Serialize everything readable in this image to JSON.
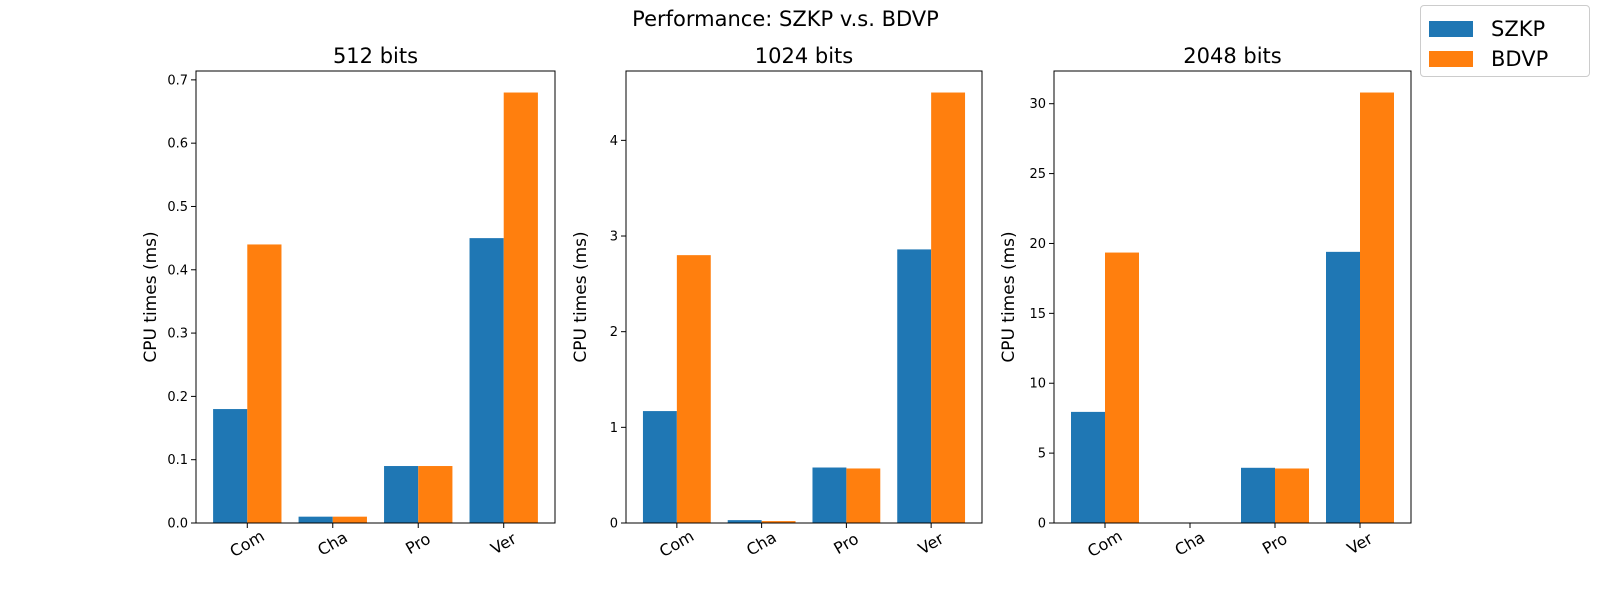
{
  "suptitle": "Performance: SZKP v.s. BDVP",
  "legend": [
    {
      "name": "SZKP",
      "color": "#1f77b4"
    },
    {
      "name": "BDVP",
      "color": "#ff7f0e"
    }
  ],
  "chart_data": [
    {
      "type": "bar",
      "title": "512 bits",
      "xlabel": "",
      "ylabel": "CPU times (ms)",
      "categories": [
        "Com",
        "Cha",
        "Pro",
        "Ver"
      ],
      "ylim": [
        0,
        0.714
      ],
      "yticks": [
        "0.0",
        "0.1",
        "0.2",
        "0.3",
        "0.4",
        "0.5",
        "0.6",
        "0.7"
      ],
      "series": [
        {
          "name": "SZKP",
          "color": "#1f77b4",
          "values": [
            0.18,
            0.01,
            0.09,
            0.45
          ]
        },
        {
          "name": "BDVP",
          "color": "#ff7f0e",
          "values": [
            0.44,
            0.01,
            0.09,
            0.68
          ]
        }
      ]
    },
    {
      "type": "bar",
      "title": "1024 bits",
      "xlabel": "",
      "ylabel": "CPU times (ms)",
      "categories": [
        "Com",
        "Cha",
        "Pro",
        "Ver"
      ],
      "ylim": [
        0,
        4.725
      ],
      "yticks": [
        "0",
        "1",
        "2",
        "3",
        "4"
      ],
      "series": [
        {
          "name": "SZKP",
          "color": "#1f77b4",
          "values": [
            1.17,
            0.03,
            0.58,
            2.86
          ]
        },
        {
          "name": "BDVP",
          "color": "#ff7f0e",
          "values": [
            2.8,
            0.02,
            0.57,
            4.5
          ]
        }
      ]
    },
    {
      "type": "bar",
      "title": "2048 bits",
      "xlabel": "",
      "ylabel": "CPU times (ms)",
      "categories": [
        "Com",
        "Cha",
        "Pro",
        "Ver"
      ],
      "ylim": [
        0,
        32.34
      ],
      "yticks": [
        "0",
        "5",
        "10",
        "15",
        "20",
        "25",
        "30"
      ],
      "series": [
        {
          "name": "SZKP",
          "color": "#1f77b4",
          "values": [
            7.95,
            0.01,
            3.95,
            19.4
          ]
        },
        {
          "name": "BDVP",
          "color": "#ff7f0e",
          "values": [
            19.35,
            0.01,
            3.9,
            30.8
          ]
        }
      ]
    }
  ]
}
